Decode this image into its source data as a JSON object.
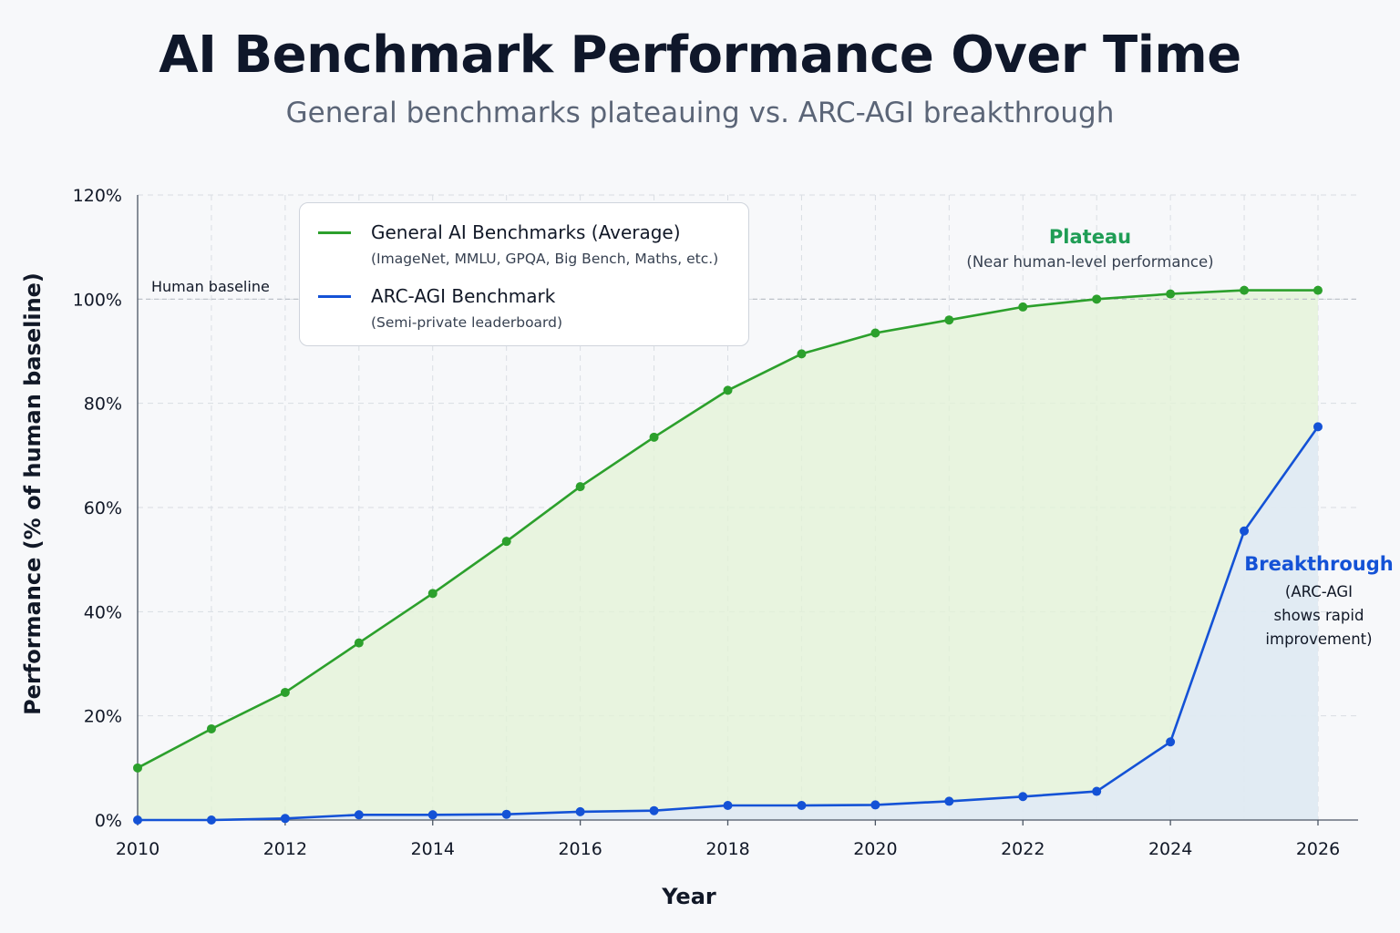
{
  "title": "AI Benchmark Performance Over Time",
  "subtitle": "General benchmarks plateauing vs. ARC-AGI breakthrough",
  "colors": {
    "general": "#2ca02c",
    "arc": "#1452d6",
    "general_fill": "#e3f3d6",
    "arc_fill": "#dfe9f7",
    "grid": "#d9dde3",
    "plateau_text": "#1f9d55",
    "breakthrough_text": "#1452d6"
  },
  "legend": {
    "general_label": "General AI Benchmarks (Average)",
    "general_sub": "(ImageNet, MMLU, GPQA, Big Bench, Maths, etc.)",
    "arc_label": "ARC-AGI Benchmark",
    "arc_sub": "(Semi-private leaderboard)"
  },
  "annotations": {
    "human_baseline": "Human baseline",
    "plateau_title": "Plateau",
    "plateau_sub": "(Near human-level performance)",
    "breakthrough_title": "Breakthrough",
    "breakthrough_line1": "(ARC-AGI",
    "breakthrough_line2": "shows rapid",
    "breakthrough_line3": "improvement)"
  },
  "chart_data": {
    "type": "line",
    "title": "AI Benchmark Performance Over Time",
    "subtitle": "General benchmarks plateauing vs. ARC-AGI breakthrough",
    "xlabel": "Year",
    "ylabel": "Performance (% of human baseline)",
    "xlim": [
      2010,
      2026.5
    ],
    "ylim": [
      0,
      120
    ],
    "x_ticks": [
      2010,
      2012,
      2014,
      2016,
      2018,
      2020,
      2022,
      2024,
      2026
    ],
    "y_ticks": [
      0,
      20,
      40,
      60,
      80,
      100,
      120
    ],
    "y_tick_suffix": "%",
    "grid": true,
    "reference_line": 100,
    "x": [
      2010,
      2011,
      2012,
      2013,
      2014,
      2015,
      2016,
      2017,
      2018,
      2019,
      2020,
      2021,
      2022,
      2023,
      2024,
      2025,
      2026
    ],
    "series": [
      {
        "name": "General AI Benchmarks (Average)",
        "values": [
          10,
          17.5,
          24.5,
          34,
          43.5,
          53.5,
          64,
          73.5,
          82.5,
          89.5,
          93.5,
          96,
          98.5,
          100,
          101,
          101.7,
          101.7
        ]
      },
      {
        "name": "ARC-AGI Benchmark",
        "values": [
          0,
          0,
          0.3,
          1,
          1,
          1.1,
          1.6,
          1.8,
          2.8,
          2.8,
          2.9,
          3.6,
          4.5,
          5.5,
          15,
          55.5,
          75.5
        ]
      }
    ],
    "legend_position": "top-left"
  }
}
